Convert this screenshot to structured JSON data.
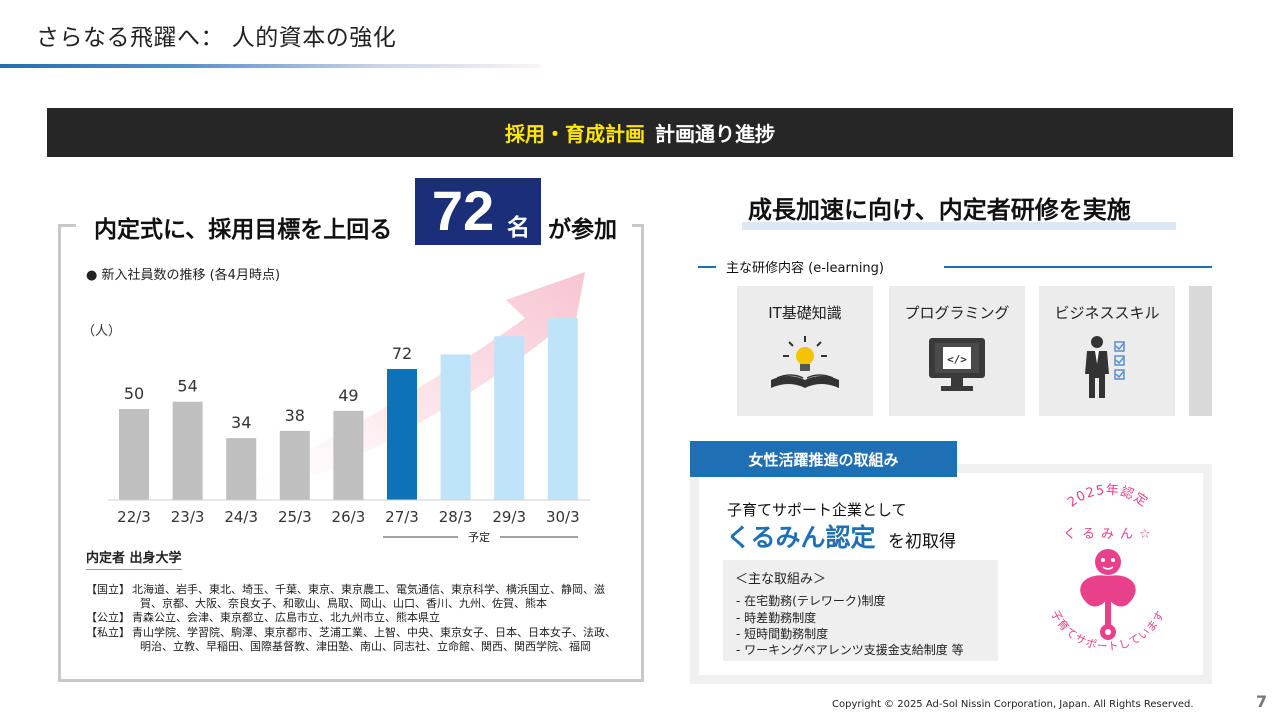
{
  "header": {
    "title": "さらなる飛躍へ：  人的資本の強化"
  },
  "banner": {
    "highlight": "採用・育成計画",
    "rest": "計画通り進捗"
  },
  "left_panel": {
    "headline_before": "内定式に、採用目標を上回る",
    "headline_number": "72",
    "headline_unit": "名",
    "headline_after": "が参加",
    "chart_title": "● 新入社員数の推移 (各4月時点)",
    "unit_label": "（人）",
    "forecast_label": "予定",
    "schools_heading": "内定者 出身大学",
    "schools": [
      {
        "label": "【国立】",
        "lines": [
          "北海道、岩手、東北、埼玉、千葉、東京、東京農工、電気通信、東京科学、横浜国立、静岡、滋",
          "賀、京都、大阪、奈良女子、和歌山、鳥取、岡山、山口、香川、九州、佐賀、熊本"
        ]
      },
      {
        "label": "【公立】",
        "lines": [
          "青森公立、会津、東京都立、広島市立、北九州市立、熊本県立"
        ]
      },
      {
        "label": "【私立】",
        "lines": [
          "青山学院、学習院、駒澤、東京都市、芝浦工業、上智、中央、東京女子、日本、日本女子、法政、",
          "明治、立教、早稲田、国際基督教、津田塾、南山、同志社、立命館、関西、関西学院、福岡"
        ]
      }
    ]
  },
  "chart_data": {
    "type": "bar",
    "title": "● 新入社員数の推移 (各4月時点)",
    "ylabel": "（人）",
    "xlabel": "",
    "categories": [
      "22/3",
      "23/3",
      "24/3",
      "25/3",
      "26/3",
      "27/3",
      "28/3",
      "29/3",
      "30/3"
    ],
    "values": [
      50,
      54,
      34,
      38,
      49,
      72,
      80,
      90,
      100
    ],
    "labels": [
      "50",
      "54",
      "34",
      "38",
      "49",
      "72",
      "",
      "",
      ""
    ],
    "bar_colors": [
      "#bfbfbf",
      "#bfbfbf",
      "#bfbfbf",
      "#bfbfbf",
      "#bfbfbf",
      "#0e72b8",
      "#bfe3f8",
      "#bfe3f8",
      "#bfe3f8"
    ],
    "forecast_categories": [
      "27/3",
      "28/3",
      "29/3",
      "30/3"
    ],
    "ylim": [
      0,
      100
    ],
    "grid": false
  },
  "right_top": {
    "title": "成長加速に向け、内定者研修を実施",
    "sub_label": "主な研修内容 (e-learning)",
    "courses": [
      {
        "name": "IT基礎知識",
        "icon": "lightbulb-book-icon"
      },
      {
        "name": "プログラミング",
        "icon": "code-monitor-icon"
      },
      {
        "name": "ビジネススキル",
        "icon": "businessman-checklist-icon"
      }
    ]
  },
  "right_bottom": {
    "tab": "女性活躍推進の取組み",
    "subtitle": "子育てサポート企業として",
    "cert_name": "くるみん認定",
    "cert_tail": "を初取得",
    "measures_heading": "＜主な取組み＞",
    "measures": [
      "- 在宅勤務(テレワーク)制度",
      "- 時差勤務制度",
      "- 短時間勤務制度",
      "- ワーキングペアレンツ支援金支給制度 等"
    ],
    "logo_year_text": "2025年認定",
    "logo_kurumin_text": "くるみん☆",
    "logo_ring_text": "子育てサポートしています",
    "logo_color": "#e8408a"
  },
  "footer": {
    "copyright": "Copyright © 2025 Ad-Sol Nissin Corporation, Japan. All Rights Reserved.",
    "page_number": "7"
  }
}
